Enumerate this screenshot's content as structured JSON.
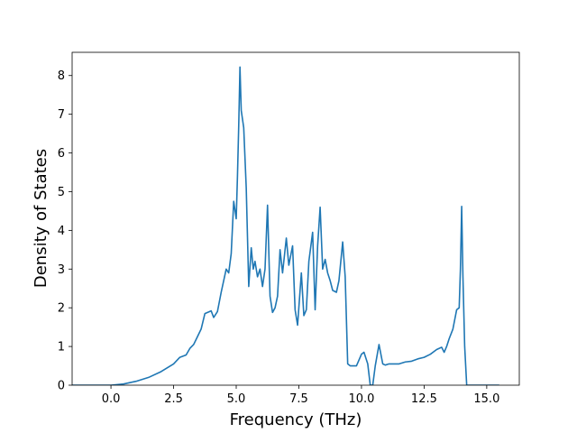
{
  "chart_data": {
    "type": "line",
    "title": "",
    "xlabel": "Frequency (THz)",
    "ylabel": "Density of States",
    "xlim": [
      -1.55,
      16.3
    ],
    "ylim": [
      0,
      8.6
    ],
    "grid": false,
    "x_ticks": [
      0.0,
      2.5,
      5.0,
      7.5,
      10.0,
      12.5,
      15.0
    ],
    "x_tick_labels": [
      "0.0",
      "2.5",
      "5.0",
      "7.5",
      "10.0",
      "12.5",
      "15.0"
    ],
    "y_ticks": [
      0,
      1,
      2,
      3,
      4,
      5,
      6,
      7,
      8
    ],
    "y_tick_labels": [
      "0",
      "1",
      "2",
      "3",
      "4",
      "5",
      "6",
      "7",
      "8"
    ],
    "line_color": "#1f77b4",
    "series": [
      {
        "x": [
          -2.4,
          0.0,
          0.5,
          1.0,
          1.5,
          2.0,
          2.5,
          2.75,
          3.0,
          3.15,
          3.3,
          3.45,
          3.6,
          3.75,
          4.0,
          4.1,
          4.25,
          4.4,
          4.6,
          4.7,
          4.8,
          4.9,
          5.0,
          5.05,
          5.1,
          5.15,
          5.2,
          5.3,
          5.4,
          5.5,
          5.6,
          5.68,
          5.75,
          5.85,
          5.95,
          6.05,
          6.15,
          6.25,
          6.35,
          6.45,
          6.55,
          6.65,
          6.75,
          6.85,
          7.0,
          7.1,
          7.25,
          7.35,
          7.45,
          7.5,
          7.6,
          7.7,
          7.8,
          7.9,
          8.05,
          8.15,
          8.25,
          8.35,
          8.45,
          8.55,
          8.65,
          8.75,
          8.85,
          9.0,
          9.1,
          9.25,
          9.35,
          9.45,
          9.55,
          9.6,
          9.7,
          9.8,
          10.0,
          10.1,
          10.25,
          10.35,
          10.45,
          10.55,
          10.7,
          10.85,
          10.95,
          11.1,
          11.3,
          11.5,
          11.75,
          12.0,
          12.25,
          12.5,
          12.75,
          13.0,
          13.2,
          13.3,
          13.4,
          13.5,
          13.65,
          13.8,
          13.9,
          13.95,
          14.0,
          14.05,
          14.12,
          14.2,
          14.4,
          15.5
        ],
        "y": [
          0,
          0,
          0.03,
          0.1,
          0.2,
          0.35,
          0.55,
          0.72,
          0.78,
          0.95,
          1.05,
          1.25,
          1.45,
          1.85,
          1.92,
          1.75,
          1.9,
          2.4,
          3.0,
          2.9,
          3.4,
          4.75,
          4.3,
          5.4,
          6.7,
          8.22,
          7.1,
          6.65,
          5.1,
          2.55,
          3.55,
          3.0,
          3.2,
          2.8,
          3.0,
          2.55,
          3.0,
          4.65,
          2.3,
          1.88,
          2.0,
          2.3,
          3.5,
          2.9,
          3.8,
          3.1,
          3.6,
          1.95,
          1.55,
          2.0,
          2.9,
          1.8,
          1.95,
          3.2,
          3.95,
          1.95,
          3.6,
          4.6,
          3.0,
          3.25,
          2.9,
          2.7,
          2.45,
          2.4,
          2.7,
          3.7,
          2.8,
          0.55,
          0.5,
          0.5,
          0.5,
          0.5,
          0.8,
          0.85,
          0.55,
          0.0,
          0.0,
          0.5,
          1.05,
          0.55,
          0.52,
          0.55,
          0.55,
          0.55,
          0.6,
          0.62,
          0.68,
          0.72,
          0.8,
          0.92,
          0.98,
          0.85,
          1.0,
          1.2,
          1.45,
          1.95,
          2.0,
          3.0,
          4.62,
          2.8,
          1.0,
          0.0,
          0.0,
          0.0
        ]
      }
    ]
  }
}
